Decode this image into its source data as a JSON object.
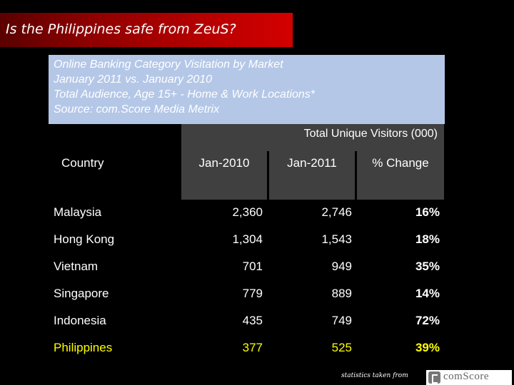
{
  "title": "Is the Philippines safe from ZeuS?",
  "subtitle_lines": [
    "Online Banking Category Visitation by Market",
    "January 2011 vs. January 2010",
    "Total Audience, Age 15+ - Home & Work Locations*",
    "Source: com.Score Media Metrix"
  ],
  "table": {
    "group_header": "Total Unique Visitors (000)",
    "columns": [
      "Country",
      "Jan-2010",
      "Jan-2011",
      "% Change"
    ],
    "rows": [
      {
        "country": "Malaysia",
        "jan2010": "2,360",
        "jan2011": "2,746",
        "change": "16%"
      },
      {
        "country": "Hong Kong",
        "jan2010": "1,304",
        "jan2011": "1,543",
        "change": "18%"
      },
      {
        "country": "Vietnam",
        "jan2010": "701",
        "jan2011": "949",
        "change": "35%"
      },
      {
        "country": "Singapore",
        "jan2010": "779",
        "jan2011": "889",
        "change": "14%"
      },
      {
        "country": "Indonesia",
        "jan2010": "435",
        "jan2011": "749",
        "change": "72%"
      },
      {
        "country": "Philippines",
        "jan2010": "377",
        "jan2011": "525",
        "change": "39%"
      }
    ],
    "highlight_color": "#ffff00"
  },
  "footer": {
    "text": "statistics taken from",
    "logo_text": "comScore"
  }
}
